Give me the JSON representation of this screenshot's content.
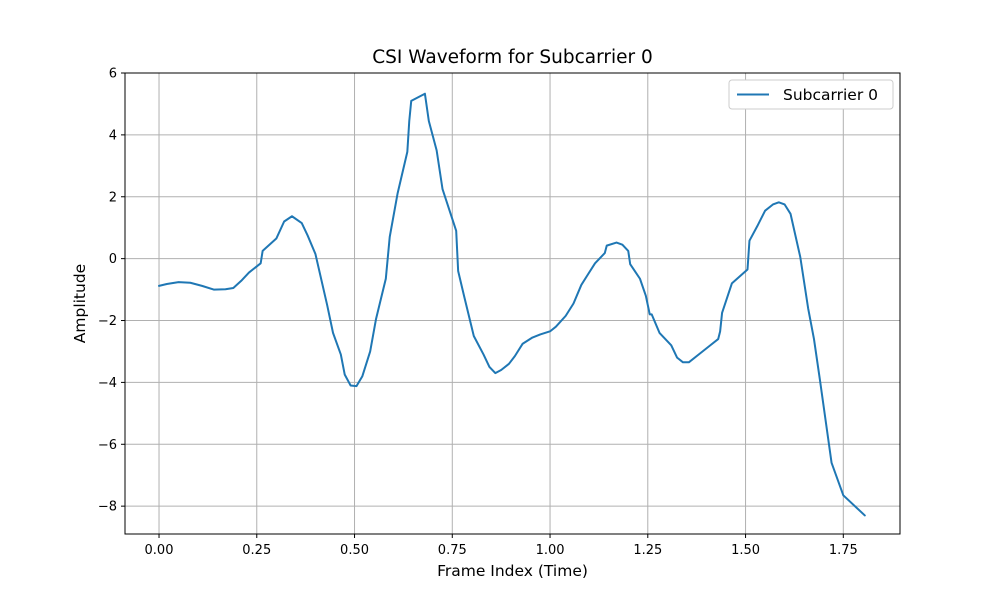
{
  "chart_data": {
    "type": "line",
    "title": "CSI Waveform for Subcarrier 0",
    "xlabel": "Frame Index (Time)",
    "ylabel": "Amplitude",
    "xlim": [
      -0.087,
      1.895
    ],
    "ylim": [
      -8.9,
      6.0
    ],
    "xticks": [
      0.0,
      0.25,
      0.5,
      0.75,
      1.0,
      1.25,
      1.5,
      1.75
    ],
    "xtick_labels": [
      "0.00",
      "0.25",
      "0.50",
      "0.75",
      "1.00",
      "1.25",
      "1.50",
      "1.75"
    ],
    "yticks": [
      -8,
      -6,
      -4,
      -2,
      0,
      2,
      4,
      6
    ],
    "ytick_labels": [
      "−8",
      "−6",
      "−4",
      "−2",
      "0",
      "2",
      "4",
      "6"
    ],
    "grid": true,
    "legend": {
      "position": "top-right",
      "entries": [
        "Subcarrier 0"
      ]
    },
    "colors": {
      "series": "#1f77b4",
      "grid": "#b0b0b0",
      "axis": "#000000"
    },
    "series": [
      {
        "name": "Subcarrier 0",
        "x": [
          0.0,
          0.02,
          0.05,
          0.08,
          0.11,
          0.14,
          0.17,
          0.19,
          0.21,
          0.23,
          0.26,
          0.265,
          0.3,
          0.32,
          0.34,
          0.365,
          0.38,
          0.4,
          0.43,
          0.445,
          0.465,
          0.475,
          0.49,
          0.505,
          0.52,
          0.54,
          0.555,
          0.58,
          0.59,
          0.61,
          0.635,
          0.64,
          0.645,
          0.68,
          0.69,
          0.71,
          0.725,
          0.76,
          0.765,
          0.78,
          0.805,
          0.83,
          0.845,
          0.86,
          0.875,
          0.895,
          0.91,
          0.93,
          0.955,
          0.975,
          1.0,
          1.015,
          1.04,
          1.06,
          1.08,
          1.095,
          1.115,
          1.14,
          1.145,
          1.17,
          1.185,
          1.2,
          1.205,
          1.23,
          1.245,
          1.255,
          1.26,
          1.28,
          1.31,
          1.325,
          1.34,
          1.355,
          1.385,
          1.41,
          1.43,
          1.435,
          1.44,
          1.465,
          1.505,
          1.51,
          1.53,
          1.55,
          1.57,
          1.585,
          1.6,
          1.615,
          1.64,
          1.66,
          1.675,
          1.69,
          1.72,
          1.75,
          1.805
        ],
        "y": [
          -0.88,
          -0.82,
          -0.76,
          -0.78,
          -0.88,
          -1.0,
          -0.99,
          -0.95,
          -0.72,
          -0.45,
          -0.15,
          0.25,
          0.65,
          1.2,
          1.37,
          1.15,
          0.75,
          0.15,
          -1.5,
          -2.4,
          -3.1,
          -3.75,
          -4.1,
          -4.12,
          -3.8,
          -3.0,
          -1.95,
          -0.65,
          0.7,
          2.1,
          3.45,
          4.45,
          5.1,
          5.33,
          4.45,
          3.5,
          2.25,
          0.9,
          -0.4,
          -1.2,
          -2.5,
          -3.1,
          -3.5,
          -3.7,
          -3.6,
          -3.4,
          -3.15,
          -2.75,
          -2.55,
          -2.45,
          -2.35,
          -2.2,
          -1.85,
          -1.45,
          -0.85,
          -0.55,
          -0.15,
          0.18,
          0.42,
          0.52,
          0.45,
          0.25,
          -0.18,
          -0.65,
          -1.2,
          -1.8,
          -1.8,
          -2.4,
          -2.8,
          -3.2,
          -3.35,
          -3.35,
          -3.05,
          -2.8,
          -2.6,
          -2.35,
          -1.75,
          -0.8,
          -0.35,
          0.58,
          1.05,
          1.55,
          1.75,
          1.82,
          1.75,
          1.45,
          0.05,
          -1.6,
          -2.6,
          -3.9,
          -6.6,
          -7.65,
          -8.3
        ]
      }
    ]
  }
}
